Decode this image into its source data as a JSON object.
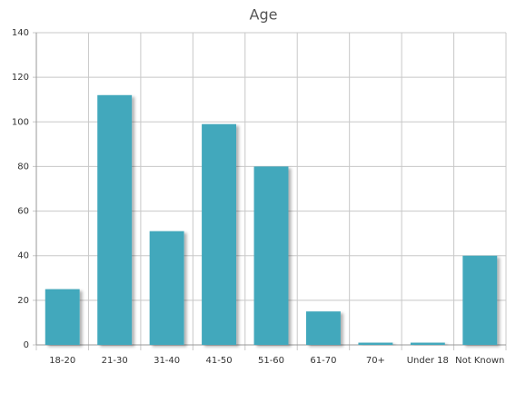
{
  "chart_data": {
    "type": "bar",
    "title": "Age",
    "categories": [
      "18-20",
      "21-30",
      "31-40",
      "41-50",
      "51-60",
      "61-70",
      "70+",
      "Under 18",
      "Not Known"
    ],
    "values": [
      25,
      112,
      51,
      99,
      80,
      15,
      1,
      1,
      40
    ],
    "color": "#43a8bc",
    "ylim": [
      0,
      140
    ],
    "yticks": [
      0,
      20,
      40,
      60,
      80,
      100,
      120,
      140
    ],
    "grid": true
  }
}
